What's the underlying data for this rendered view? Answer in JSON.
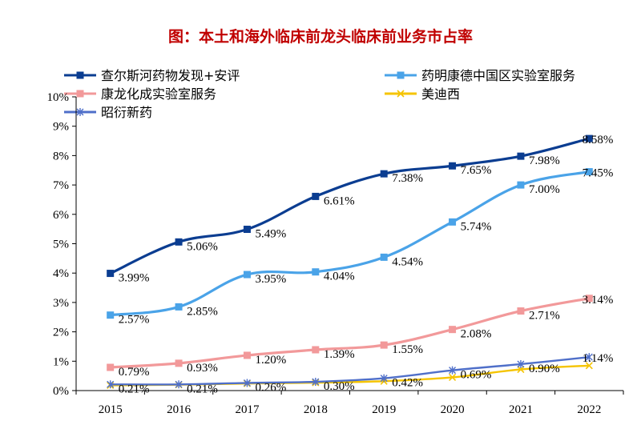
{
  "chart_data": {
    "type": "line",
    "title": "图：本土和海外临床前龙头临床前业务市占率",
    "xlabel": "",
    "ylabel": "",
    "categories": [
      "2015",
      "2016",
      "2017",
      "2018",
      "2019",
      "2020",
      "2021",
      "2022"
    ],
    "y_ticks": [
      "0%",
      "1%",
      "2%",
      "3%",
      "4%",
      "5%",
      "6%",
      "7%",
      "8%",
      "9%",
      "10%"
    ],
    "ylim": [
      0,
      10
    ],
    "grid": false,
    "legend_position": "top",
    "series": [
      {
        "name": "查尔斯河药物发现+安评",
        "color": "#0b3d91",
        "marker": "square",
        "values": [
          3.99,
          5.06,
          5.49,
          6.61,
          7.38,
          7.65,
          7.98,
          8.58
        ],
        "labels": [
          "3.99%",
          "5.06%",
          "5.49%",
          "6.61%",
          "7.38%",
          "7.65%",
          "7.98%",
          "8.58%"
        ]
      },
      {
        "name": "药明康德中国区实验室服务",
        "color": "#4aa3e8",
        "marker": "square",
        "values": [
          2.57,
          2.85,
          3.95,
          4.04,
          4.54,
          5.74,
          7.0,
          7.45
        ],
        "labels": [
          "2.57%",
          "2.85%",
          "3.95%",
          "4.04%",
          "4.54%",
          "5.74%",
          "7.00%",
          "7.45%"
        ]
      },
      {
        "name": "康龙化成实验室服务",
        "color": "#f2999a",
        "marker": "square",
        "values": [
          0.79,
          0.93,
          1.2,
          1.39,
          1.55,
          2.08,
          2.71,
          3.14
        ],
        "labels": [
          "0.79%",
          "0.93%",
          "1.20%",
          "1.39%",
          "1.55%",
          "2.08%",
          "2.71%",
          "3.14%"
        ]
      },
      {
        "name": "美迪西",
        "color": "#f5c400",
        "marker": "x",
        "values": [
          0.18,
          0.2,
          0.24,
          0.27,
          0.32,
          0.45,
          0.72,
          0.85
        ],
        "labels": []
      },
      {
        "name": "昭衍新药",
        "color": "#4f6fc9",
        "marker": "star",
        "values": [
          0.21,
          0.21,
          0.26,
          0.3,
          0.42,
          0.69,
          0.9,
          1.14
        ],
        "labels": [
          "0.21%",
          "0.21%",
          "0.26%",
          "0.30%",
          "0.42%",
          "0.69%",
          "0.90%",
          "1.14%"
        ]
      }
    ]
  }
}
